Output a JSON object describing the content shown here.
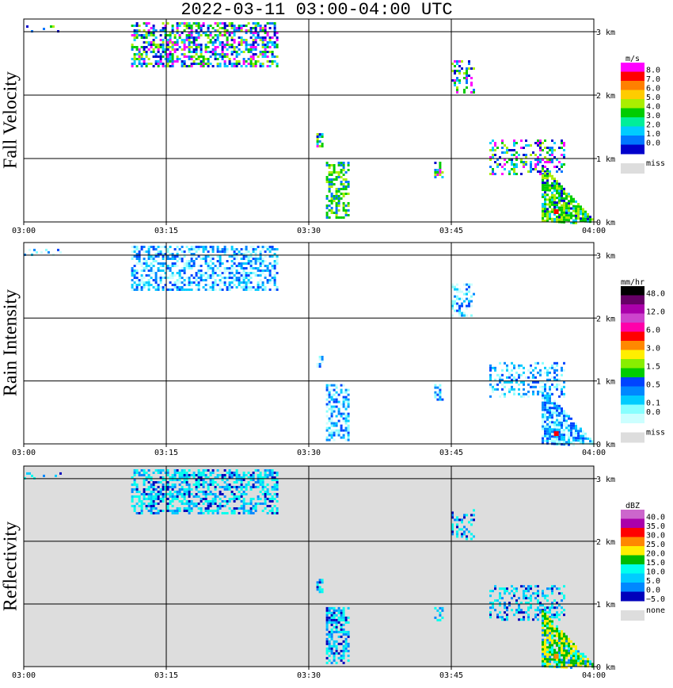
{
  "title": "2022-03-11   03:00-04:00 UTC",
  "chart_data": [
    {
      "type": "heatmap",
      "title": "Fall Velocity",
      "units": "m/s",
      "x_ticks": [
        "03:00",
        "03:15",
        "03:30",
        "03:45",
        "04:00"
      ],
      "y_ticks": [
        "0 km",
        "1 km",
        "2 km",
        "3 km"
      ],
      "xlim": [
        "03:00",
        "04:00"
      ],
      "ylim_km": [
        0,
        3.2
      ],
      "grid": true,
      "legend": {
        "labels": [
          "8.0",
          "7.0",
          "6.0",
          "5.0",
          "4.0",
          "3.0",
          "2.0",
          "1.0",
          "0.0"
        ],
        "colors": [
          "#ff00ff",
          "#ff0000",
          "#ff8000",
          "#ffcc00",
          "#aaee00",
          "#00cc00",
          "#00ee99",
          "#00ccff",
          "#0077ff",
          "#0000cc"
        ],
        "missing_label": "miss",
        "missing_color": "#dddddd"
      }
    },
    {
      "type": "heatmap",
      "title": "Rain Intensity",
      "units": "mm/hr",
      "x_ticks": [
        "03:00",
        "03:15",
        "03:30",
        "03:45",
        "04:00"
      ],
      "y_ticks": [
        "0 km",
        "1 km",
        "2 km",
        "3 km"
      ],
      "xlim": [
        "03:00",
        "04:00"
      ],
      "ylim_km": [
        0,
        3.2
      ],
      "grid": true,
      "legend": {
        "labels": [
          "48.0",
          "",
          "12.0",
          "",
          "6.0",
          "",
          "3.0",
          "",
          "1.5",
          "",
          "0.5",
          "",
          "0.1",
          "0.0"
        ],
        "colors": [
          "#000000",
          "#660066",
          "#aa00aa",
          "#cc44cc",
          "#ff00aa",
          "#ff0000",
          "#ff8800",
          "#ffee00",
          "#88ee00",
          "#00cc00",
          "#0044ff",
          "#0088ff",
          "#00ccff",
          "#88ffff",
          "#ccffff"
        ],
        "missing_label": "miss",
        "missing_color": "#dddddd"
      }
    },
    {
      "type": "heatmap",
      "title": "Reflectivity",
      "units": "dBZ",
      "x_ticks": [
        "03:00",
        "03:15",
        "03:30",
        "03:45",
        "04:00"
      ],
      "y_ticks": [
        "0 km",
        "1 km",
        "2 km",
        "3 km"
      ],
      "xlim": [
        "03:00",
        "04:00"
      ],
      "ylim_km": [
        0,
        3.2
      ],
      "grid": true,
      "legend": {
        "labels": [
          "40.0",
          "35.0",
          "30.0",
          "25.0",
          "20.0",
          "15.0",
          "10.0",
          "5.0",
          "0.0",
          "−5.0"
        ],
        "colors": [
          "#cc66cc",
          "#aa00aa",
          "#ff0000",
          "#ff8800",
          "#ffee00",
          "#00bb00",
          "#00ffee",
          "#00ccff",
          "#0088ff",
          "#0000bb"
        ],
        "missing_label": "none",
        "missing_color": "#dddddd"
      }
    }
  ]
}
